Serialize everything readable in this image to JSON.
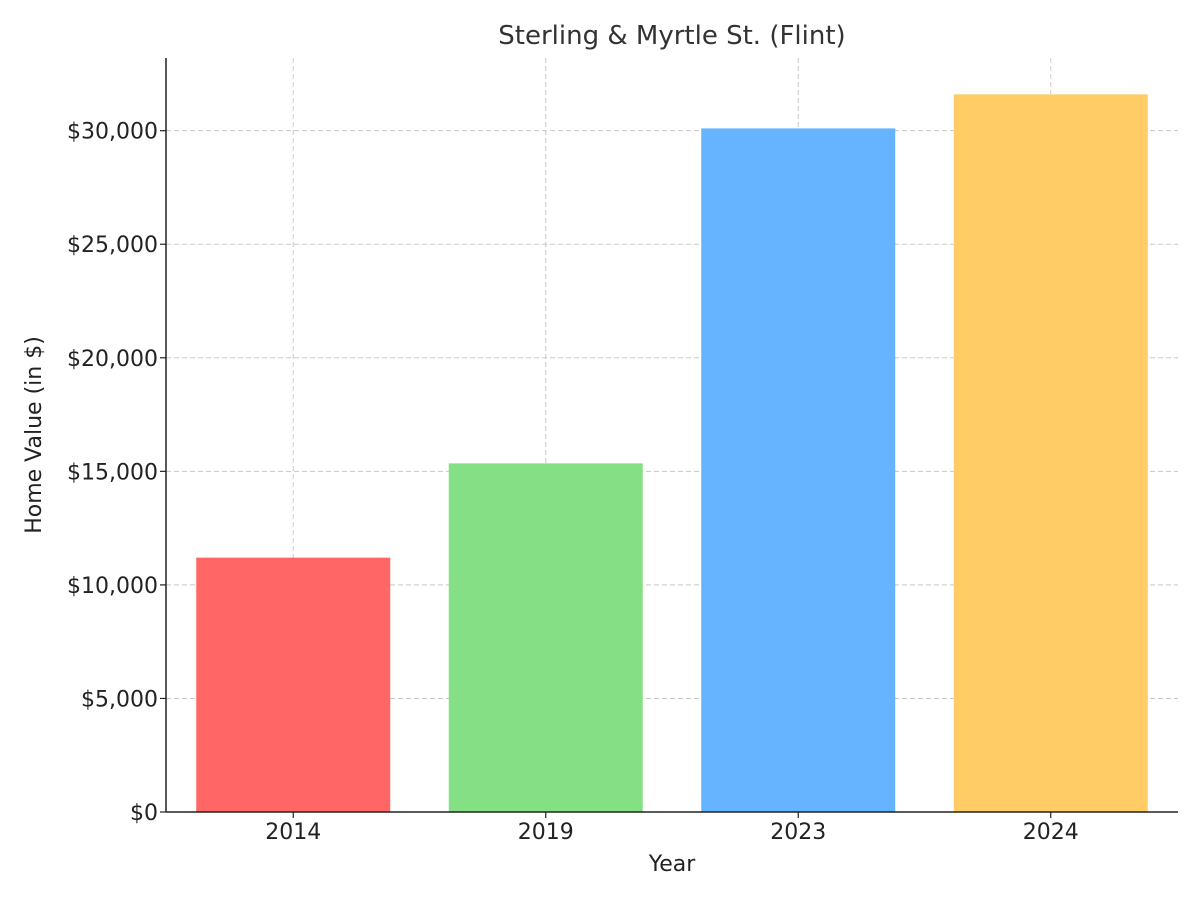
{
  "chart_data": {
    "type": "bar",
    "title": "Sterling & Myrtle St. (Flint)",
    "xlabel": "Year",
    "ylabel": "Home Value (in $)",
    "categories": [
      "2014",
      "2019",
      "2023",
      "2024"
    ],
    "values": [
      11200,
      15350,
      30100,
      31600
    ],
    "colors": [
      "#ff6666",
      "#85e085",
      "#66b3ff",
      "#ffcc66"
    ],
    "ylim": [
      0,
      33200
    ],
    "yticks": [
      0,
      5000,
      10000,
      15000,
      20000,
      25000,
      30000
    ],
    "ytick_labels": [
      "$0",
      "$5,000",
      "$10,000",
      "$15,000",
      "$20,000",
      "$25,000",
      "$30,000"
    ],
    "grid": true,
    "legend": "none"
  }
}
